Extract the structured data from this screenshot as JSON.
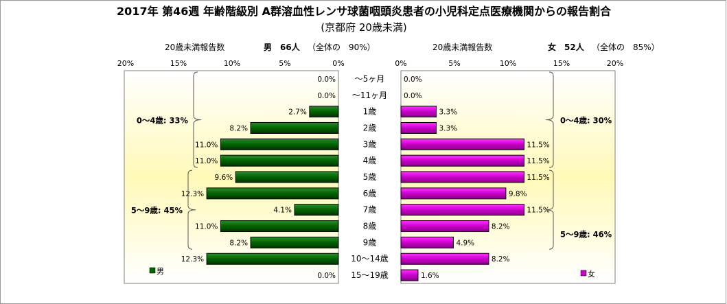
{
  "chart_data": {
    "type": "bar",
    "title": "2017年 第46週 年齢階級別 A群溶血性レンサ球菌咽頭炎患者の小児科定点医療機関からの報告割合",
    "subtitle": "(京都府 20歳未満)",
    "categories": [
      "～5ヶ月",
      "～11ヶ月",
      "1歳",
      "2歳",
      "3歳",
      "4歳",
      "5歳",
      "6歳",
      "7歳",
      "8歳",
      "9歳",
      "10～14歳",
      "15～19歳"
    ],
    "xlim": [
      0,
      20
    ],
    "ticks": [
      "20%",
      "15%",
      "10%",
      "5%",
      "0%"
    ],
    "ticks_right": [
      "0%",
      "5%",
      "10%",
      "15%",
      "20%"
    ],
    "series": [
      {
        "name": "男",
        "header_label": "20歳未満報告数",
        "header_count": "男　66人",
        "header_share": "（全体の　90%）",
        "values": [
          0.0,
          0.0,
          2.7,
          8.2,
          11.0,
          11.0,
          9.6,
          12.3,
          4.1,
          11.0,
          8.2,
          12.3,
          0.0
        ],
        "labels": [
          "0.0%",
          "0.0%",
          "2.7%",
          "8.2%",
          "11.0%",
          "11.0%",
          "9.6%",
          "12.3%",
          "4.1%",
          "11.0%",
          "8.2%",
          "12.3%",
          "0.0%"
        ],
        "color": "#006400",
        "groups": [
          {
            "label": "0～4歳: 33%",
            "from": 0,
            "to": 5
          },
          {
            "label": "5～9歳: 45%",
            "from": 6,
            "to": 10
          }
        ]
      },
      {
        "name": "女",
        "header_label": "20歳未満報告数",
        "header_count": "女　52人",
        "header_share": "（全体の　85%）",
        "values": [
          0.0,
          0.0,
          3.3,
          3.3,
          11.5,
          11.5,
          11.5,
          9.8,
          11.5,
          8.2,
          4.9,
          8.2,
          1.6
        ],
        "labels": [
          "0.0%",
          "0.0%",
          "3.3%",
          "3.3%",
          "11.5%",
          "11.5%",
          "11.5%",
          "9.8%",
          "11.5%",
          "8.2%",
          "4.9%",
          "8.2%",
          "1.6%"
        ],
        "color": "#cc00cc",
        "groups": [
          {
            "label": "0～4歳: 30%",
            "from": 0,
            "to": 5
          },
          {
            "label": "5～9歳: 46%",
            "from": 6,
            "to": 10
          }
        ]
      }
    ],
    "legend": "bottom"
  }
}
